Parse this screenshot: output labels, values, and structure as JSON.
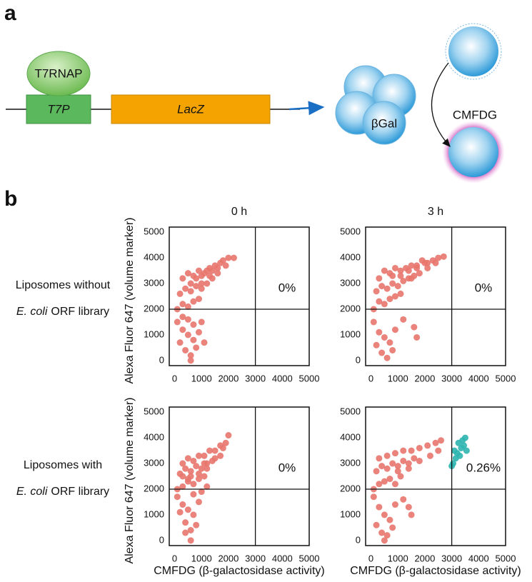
{
  "panel_a": {
    "label": "a",
    "protein": "T7RNAP",
    "promoter": "T7P",
    "gene": "LacZ",
    "enzyme": "βGal",
    "substrate": "CMFDG"
  },
  "panel_b": {
    "label": "b",
    "x_label": "CMFDG (β-galactosidase activity)",
    "y_label": "Alexa Fluor 647 (volume marker)",
    "columns": [
      "0 h",
      "3 h"
    ],
    "rows": [
      {
        "line1": "Liposomes without",
        "species": "E. coli",
        "rest": "ORF library"
      },
      {
        "line1": "Liposomes with",
        "species": "E. coli",
        "rest": "ORF library"
      }
    ],
    "charts": [
      {
        "type": "scatter",
        "xlim": [
          -200,
          5000
        ],
        "ylim": [
          -200,
          5200
        ],
        "xticks": [
          0,
          1000,
          2000,
          3000,
          4000,
          5000
        ],
        "yticks": [
          0,
          1000,
          2000,
          3000,
          4000,
          5000
        ],
        "quadrant_x": 3000,
        "quadrant_y": 2000,
        "annotation": "0%",
        "series": [
          {
            "color": "#e8756d",
            "x": [
              100,
              300,
              500,
              700,
              900,
              200,
              400,
              600,
              800,
              1000,
              1200,
              1400,
              300,
              500,
              700,
              900,
              1100,
              1300,
              1500,
              1700,
              600,
              800,
              1000,
              1200,
              1400,
              1600,
              1800,
              2000,
              2200,
              1000,
              1300,
              1600,
              1900,
              100,
              300,
              500,
              700,
              900,
              200,
              400,
              600,
              800,
              300,
              500,
              700,
              1000,
              600,
              1100
            ],
            "y": [
              2000,
              2200,
              2100,
              2300,
              2400,
              2600,
              2800,
              2700,
              2900,
              2800,
              3000,
              3200,
              3200,
              3400,
              3300,
              3500,
              3400,
              3600,
              3700,
              3800,
              3000,
              3200,
              3300,
              3500,
              3500,
              3600,
              3900,
              4000,
              4000,
              3000,
              3300,
              3400,
              3700,
              1500,
              1200,
              1000,
              800,
              1100,
              700,
              400,
              200,
              500,
              1700,
              1600,
              1400,
              1500,
              0,
              700
            ]
          }
        ]
      },
      {
        "type": "scatter",
        "xlim": [
          -200,
          5000
        ],
        "ylim": [
          -200,
          5200
        ],
        "xticks": [
          0,
          1000,
          2000,
          3000,
          4000,
          5000
        ],
        "yticks": [
          0,
          1000,
          2000,
          3000,
          4000,
          5000
        ],
        "quadrant_x": 3000,
        "quadrant_y": 2000,
        "annotation": "0%",
        "series": [
          {
            "color": "#e8756d",
            "x": [
              100,
              300,
              500,
              700,
              900,
              1100,
              200,
              400,
              600,
              800,
              1000,
              1200,
              1400,
              1600,
              300,
              500,
              700,
              900,
              1100,
              1300,
              1500,
              1700,
              1900,
              2100,
              800,
              1100,
              1400,
              1700,
              2000,
              2300,
              2500,
              2700,
              1500,
              1800,
              2100,
              2400,
              100,
              300,
              500,
              700,
              900,
              200,
              400,
              600,
              800,
              1600,
              1700,
              1200
            ],
            "y": [
              2000,
              2300,
              2200,
              2400,
              2500,
              2600,
              2700,
              2900,
              2800,
              3000,
              2900,
              3100,
              3200,
              3300,
              3200,
              3500,
              3400,
              3600,
              3500,
              3600,
              3700,
              3700,
              3900,
              3800,
              3300,
              3300,
              3500,
              3600,
              3800,
              3900,
              4000,
              4050,
              3200,
              3400,
              3600,
              3800,
              1500,
              1100,
              900,
              700,
              1200,
              600,
              300,
              100,
              400,
              1300,
              900,
              1600
            ]
          }
        ]
      },
      {
        "type": "scatter",
        "xlim": [
          -200,
          5000
        ],
        "ylim": [
          -200,
          5200
        ],
        "xticks": [
          0,
          1000,
          2000,
          3000,
          4000,
          5000
        ],
        "yticks": [
          0,
          1000,
          2000,
          3000,
          4000,
          5000
        ],
        "quadrant_x": 3000,
        "quadrant_y": 2000,
        "annotation": "0%",
        "series": [
          {
            "color": "#e8756d",
            "x": [
              100,
              300,
              500,
              700,
              900,
              1100,
              200,
              400,
              600,
              800,
              1000,
              1200,
              1400,
              300,
              500,
              700,
              900,
              1100,
              1300,
              1500,
              1700,
              1900,
              600,
              900,
              1200,
              1500,
              1800,
              2000,
              100,
              300,
              500,
              700,
              900,
              200,
              400,
              600,
              800,
              300,
              500,
              700,
              1000,
              400,
              600,
              1200,
              1700,
              1100
            ],
            "y": [
              2000,
              2100,
              2300,
              2200,
              2400,
              2500,
              2600,
              2800,
              2700,
              2900,
              2800,
              3000,
              3100,
              3000,
              3200,
              3100,
              3300,
              3300,
              3500,
              3500,
              3700,
              3800,
              2500,
              2600,
              2800,
              3200,
              3600,
              4100,
              1700,
              1400,
              1200,
              1000,
              1500,
              1100,
              700,
              400,
              600,
              2500,
              2400,
              1800,
              1900,
              300,
              0,
              2100,
              3300,
              3000
            ]
          }
        ]
      },
      {
        "type": "scatter",
        "xlim": [
          -200,
          5000
        ],
        "ylim": [
          -200,
          5200
        ],
        "xticks": [
          0,
          1000,
          2000,
          3000,
          4000,
          5000
        ],
        "yticks": [
          0,
          1000,
          2000,
          3000,
          4000,
          5000
        ],
        "quadrant_x": 3000,
        "quadrant_y": 2000,
        "annotation": "0.26%",
        "series": [
          {
            "color": "#e8756d",
            "x": [
              100,
              300,
              500,
              700,
              900,
              1100,
              200,
              400,
              600,
              800,
              1000,
              1200,
              1400,
              1600,
              300,
              600,
              900,
              1200,
              1500,
              1800,
              2100,
              2400,
              2600,
              1000,
              1400,
              1800,
              2200,
              2500,
              100,
              300,
              500,
              700,
              900,
              200,
              400,
              600,
              800,
              1200,
              1400,
              1500,
              500
            ],
            "y": [
              2000,
              2200,
              2300,
              2400,
              2200,
              2500,
              2700,
              2900,
              2800,
              3000,
              2900,
              3100,
              3000,
              3200,
              3200,
              3300,
              3400,
              3500,
              3500,
              3600,
              3700,
              3800,
              3900,
              2700,
              2800,
              3100,
              3300,
              3500,
              1700,
              1300,
              1000,
              800,
              1400,
              600,
              300,
              200,
              500,
              1600,
              1300,
              1000,
              0
            ]
          },
          {
            "color": "#2fb5b0",
            "x": [
              3050,
              3150,
              3200,
              3300,
              3350,
              3400,
              3450,
              3500,
              3250,
              3100,
              3550,
              3000
            ],
            "y": [
              3000,
              3200,
              3400,
              3300,
              3600,
              3900,
              3700,
              4000,
              3800,
              3500,
              3500,
              2900
            ]
          }
        ]
      }
    ]
  }
}
